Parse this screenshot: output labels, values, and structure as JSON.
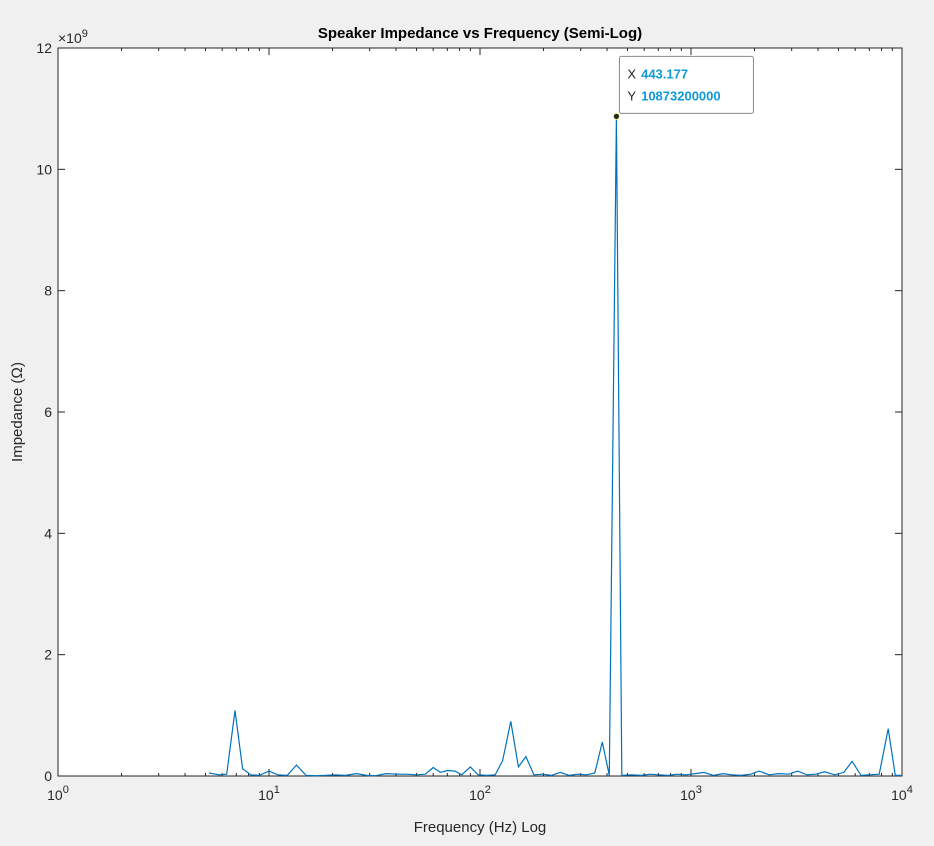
{
  "chart_data": {
    "type": "line",
    "title": "Speaker Impedance vs Frequency (Semi-Log)",
    "xlabel": "Frequency (Hz) Log",
    "ylabel": "Impedance (Ω)",
    "x_scale": "log",
    "xlim": [
      1,
      10000
    ],
    "ylim": [
      0,
      12000000000
    ],
    "y_exponent_label": "×10",
    "y_exponent_power": "9",
    "x_ticks": [
      {
        "value": 1,
        "base": "10",
        "power": "0"
      },
      {
        "value": 10,
        "base": "10",
        "power": "1"
      },
      {
        "value": 100,
        "base": "10",
        "power": "2"
      },
      {
        "value": 1000,
        "base": "10",
        "power": "3"
      },
      {
        "value": 10000,
        "base": "10",
        "power": "4"
      }
    ],
    "y_ticks": [
      {
        "value": 0,
        "label": "0"
      },
      {
        "value": 2000000000,
        "label": "2"
      },
      {
        "value": 4000000000,
        "label": "4"
      },
      {
        "value": 6000000000,
        "label": "6"
      },
      {
        "value": 8000000000,
        "label": "8"
      },
      {
        "value": 10000000000,
        "label": "10"
      },
      {
        "value": 12000000000,
        "label": "12"
      }
    ],
    "grid": false,
    "series": [
      {
        "color": "#0072bd",
        "x": [
          5.2,
          5.8,
          6.3,
          6.9,
          7.5,
          8.2,
          9.0,
          10.0,
          11.0,
          12.2,
          13.5,
          15.0,
          16.8,
          18.5,
          20.5,
          23,
          26,
          29,
          32,
          36,
          40,
          45,
          50,
          55,
          60,
          65,
          70,
          76,
          82,
          90,
          98,
          108,
          118,
          128,
          140,
          152,
          165,
          180,
          198,
          218,
          240,
          265,
          290,
          320,
          350,
          380,
          410,
          443.177,
          470,
          520,
          580,
          640,
          700,
          780,
          860,
          950,
          1050,
          1150,
          1280,
          1420,
          1560,
          1730,
          1920,
          2100,
          2350,
          2600,
          2900,
          3200,
          3550,
          3900,
          4300,
          4800,
          5300,
          5800,
          6400,
          7000,
          7800,
          8600,
          9300,
          10000
        ],
        "y": [
          50000000,
          20000000,
          30000000,
          1080000000,
          120000000,
          20000000,
          10000000,
          80000000,
          20000000,
          10000000,
          180000000,
          10000000,
          5000000,
          10000000,
          20000000,
          10000000,
          40000000,
          10000000,
          5000000,
          40000000,
          30000000,
          30000000,
          20000000,
          30000000,
          140000000,
          60000000,
          90000000,
          80000000,
          20000000,
          150000000,
          20000000,
          10000000,
          20000000,
          250000000,
          900000000,
          150000000,
          320000000,
          20000000,
          30000000,
          10000000,
          60000000,
          10000000,
          30000000,
          20000000,
          50000000,
          560000000,
          10000000,
          10873200000,
          10000000,
          20000000,
          10000000,
          30000000,
          20000000,
          10000000,
          30000000,
          20000000,
          40000000,
          60000000,
          10000000,
          40000000,
          20000000,
          10000000,
          30000000,
          80000000,
          20000000,
          40000000,
          30000000,
          80000000,
          20000000,
          30000000,
          70000000,
          20000000,
          60000000,
          240000000,
          10000000,
          20000000,
          30000000,
          780000000,
          10000000,
          10000000
        ]
      }
    ],
    "datatip": {
      "x_key": "X",
      "x_value": "443.177",
      "y_key": "Y",
      "y_value": "10873200000",
      "point_x": 443.177,
      "point_y": 10873200000
    }
  }
}
